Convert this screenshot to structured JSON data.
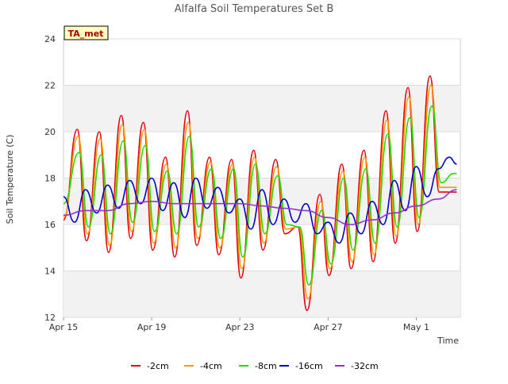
{
  "chart_data": {
    "type": "line",
    "title": "Alfalfa Soil Temperatures Set B",
    "xlabel": "Time",
    "ylabel": "Soil Temperature (C)",
    "badge": "TA_met",
    "ylim": [
      12,
      24
    ],
    "yticks": [
      12,
      14,
      16,
      18,
      20,
      22,
      24
    ],
    "xlim": [
      "2024-04-15",
      "2024-05-03"
    ],
    "xticks": [
      {
        "date": "2024-04-15",
        "label": "Apr 15"
      },
      {
        "date": "2024-04-19",
        "label": "Apr 19"
      },
      {
        "date": "2024-04-23",
        "label": "Apr 23"
      },
      {
        "date": "2024-04-27",
        "label": "Apr 27"
      },
      {
        "date": "2024-05-01",
        "label": "May 1"
      }
    ],
    "grid": "horizontal bands",
    "legend_position": "bottom",
    "series": [
      {
        "name": "-2cm",
        "color": "#e8000b",
        "x": [
          "2024-04-15T00:00",
          "2024-04-15T15:00",
          "2024-04-16T01:00",
          "2024-04-16T15:00",
          "2024-04-17T01:00",
          "2024-04-17T15:00",
          "2024-04-18T01:00",
          "2024-04-18T15:00",
          "2024-04-19T01:00",
          "2024-04-19T15:00",
          "2024-04-20T01:00",
          "2024-04-20T15:00",
          "2024-04-21T01:00",
          "2024-04-21T15:00",
          "2024-04-22T01:00",
          "2024-04-22T15:00",
          "2024-04-23T01:00",
          "2024-04-23T15:00",
          "2024-04-24T01:00",
          "2024-04-24T15:00",
          "2024-04-25T01:00",
          "2024-04-25T15:00",
          "2024-04-26T01:00",
          "2024-04-26T15:00",
          "2024-04-27T01:00",
          "2024-04-27T15:00",
          "2024-04-28T01:00",
          "2024-04-28T15:00",
          "2024-04-29T01:00",
          "2024-04-29T15:00",
          "2024-04-30T01:00",
          "2024-04-30T15:00",
          "2024-05-01T01:00",
          "2024-05-01T15:00",
          "2024-05-02T01:00",
          "2024-05-02T15:00",
          "2024-05-02T20:00"
        ],
        "y": [
          16.2,
          20.1,
          15.3,
          20.0,
          14.8,
          20.7,
          15.4,
          20.4,
          14.9,
          18.9,
          14.6,
          20.9,
          15.1,
          18.9,
          14.7,
          18.8,
          13.7,
          19.2,
          14.9,
          18.8,
          15.6,
          15.9,
          12.3,
          17.3,
          13.8,
          18.6,
          14.1,
          19.2,
          14.4,
          20.9,
          15.2,
          21.9,
          15.7,
          22.4,
          17.4,
          17.4,
          17.4
        ]
      },
      {
        "name": "-4cm",
        "color": "#ff9900",
        "x": [
          "2024-04-15T00:00",
          "2024-04-15T16:00",
          "2024-04-16T02:00",
          "2024-04-16T16:00",
          "2024-04-17T02:00",
          "2024-04-17T16:00",
          "2024-04-18T02:00",
          "2024-04-18T16:00",
          "2024-04-19T02:00",
          "2024-04-19T16:00",
          "2024-04-20T02:00",
          "2024-04-20T16:00",
          "2024-04-21T02:00",
          "2024-04-21T16:00",
          "2024-04-22T02:00",
          "2024-04-22T16:00",
          "2024-04-23T02:00",
          "2024-04-23T16:00",
          "2024-04-24T02:00",
          "2024-04-24T16:00",
          "2024-04-25T02:00",
          "2024-04-25T16:00",
          "2024-04-26T02:00",
          "2024-04-26T16:00",
          "2024-04-27T02:00",
          "2024-04-27T16:00",
          "2024-04-28T02:00",
          "2024-04-28T16:00",
          "2024-04-29T02:00",
          "2024-04-29T16:00",
          "2024-04-30T02:00",
          "2024-04-30T16:00",
          "2024-05-01T02:00",
          "2024-05-01T16:00",
          "2024-05-02T02:00",
          "2024-05-02T16:00",
          "2024-05-02T20:00"
        ],
        "y": [
          16.3,
          19.8,
          15.6,
          19.7,
          15.1,
          20.3,
          15.7,
          20.1,
          15.2,
          18.6,
          15.0,
          20.4,
          15.4,
          18.7,
          15.0,
          18.6,
          14.1,
          18.9,
          15.2,
          18.5,
          15.8,
          15.9,
          12.8,
          17.0,
          14.1,
          18.3,
          14.4,
          18.9,
          14.7,
          20.5,
          15.5,
          21.5,
          16.0,
          22.0,
          17.6,
          17.6,
          17.6
        ]
      },
      {
        "name": "-8cm",
        "color": "#22dd00",
        "x": [
          "2024-04-15T00:00",
          "2024-04-15T17:00",
          "2024-04-16T03:00",
          "2024-04-16T17:00",
          "2024-04-17T03:00",
          "2024-04-17T17:00",
          "2024-04-18T03:00",
          "2024-04-18T17:00",
          "2024-04-19T03:00",
          "2024-04-19T17:00",
          "2024-04-20T03:00",
          "2024-04-20T17:00",
          "2024-04-21T03:00",
          "2024-04-21T17:00",
          "2024-04-22T03:00",
          "2024-04-22T17:00",
          "2024-04-23T03:00",
          "2024-04-23T17:00",
          "2024-04-24T03:00",
          "2024-04-24T17:00",
          "2024-04-25T03:00",
          "2024-04-25T17:00",
          "2024-04-26T03:00",
          "2024-04-26T17:00",
          "2024-04-27T03:00",
          "2024-04-27T17:00",
          "2024-04-28T03:00",
          "2024-04-28T17:00",
          "2024-04-29T03:00",
          "2024-04-29T17:00",
          "2024-04-30T03:00",
          "2024-04-30T17:00",
          "2024-05-01T03:00",
          "2024-05-01T17:00",
          "2024-05-02T03:00",
          "2024-05-02T17:00",
          "2024-05-02T20:00"
        ],
        "y": [
          16.9,
          19.1,
          15.9,
          19.0,
          15.6,
          19.6,
          16.1,
          19.4,
          15.7,
          18.3,
          15.6,
          19.8,
          15.9,
          18.4,
          15.4,
          18.4,
          14.6,
          18.6,
          15.6,
          18.1,
          16.0,
          15.9,
          13.4,
          16.6,
          14.3,
          18.0,
          14.9,
          18.4,
          15.2,
          19.9,
          15.9,
          20.6,
          16.3,
          21.1,
          17.8,
          18.2,
          18.2
        ]
      },
      {
        "name": "-16cm",
        "color": "#0000cc",
        "x": [
          "2024-04-15T00:00",
          "2024-04-15T12:00",
          "2024-04-16T00:00",
          "2024-04-16T12:00",
          "2024-04-17T00:00",
          "2024-04-17T12:00",
          "2024-04-18T00:00",
          "2024-04-18T12:00",
          "2024-04-19T00:00",
          "2024-04-19T12:00",
          "2024-04-20T00:00",
          "2024-04-20T12:00",
          "2024-04-21T00:00",
          "2024-04-21T12:00",
          "2024-04-22T00:00",
          "2024-04-22T12:00",
          "2024-04-23T00:00",
          "2024-04-23T12:00",
          "2024-04-24T00:00",
          "2024-04-24T12:00",
          "2024-04-25T00:00",
          "2024-04-25T12:00",
          "2024-04-26T00:00",
          "2024-04-26T12:00",
          "2024-04-27T00:00",
          "2024-04-27T12:00",
          "2024-04-28T00:00",
          "2024-04-28T12:00",
          "2024-04-29T00:00",
          "2024-04-29T12:00",
          "2024-04-30T00:00",
          "2024-04-30T12:00",
          "2024-05-01T00:00",
          "2024-05-01T12:00",
          "2024-05-02T00:00",
          "2024-05-02T12:00",
          "2024-05-02T20:00"
        ],
        "y": [
          17.2,
          16.1,
          17.5,
          16.5,
          17.7,
          16.7,
          17.9,
          16.9,
          18.0,
          16.6,
          17.8,
          16.3,
          18.0,
          16.7,
          17.6,
          16.5,
          17.1,
          15.8,
          17.5,
          16.0,
          17.1,
          16.1,
          16.9,
          15.6,
          16.1,
          15.2,
          16.5,
          15.6,
          17.0,
          16.0,
          17.9,
          16.6,
          18.5,
          17.2,
          18.4,
          18.9,
          18.6
        ]
      },
      {
        "name": "-32cm",
        "color": "#9933cc",
        "x": [
          "2024-04-15T00:00",
          "2024-04-16T00:00",
          "2024-04-17T00:00",
          "2024-04-18T00:00",
          "2024-04-19T00:00",
          "2024-04-20T00:00",
          "2024-04-21T00:00",
          "2024-04-22T00:00",
          "2024-04-23T00:00",
          "2024-04-24T00:00",
          "2024-04-25T00:00",
          "2024-04-26T00:00",
          "2024-04-27T00:00",
          "2024-04-28T00:00",
          "2024-04-29T00:00",
          "2024-04-30T00:00",
          "2024-05-01T00:00",
          "2024-05-02T00:00",
          "2024-05-02T20:00"
        ],
        "y": [
          16.4,
          16.6,
          16.6,
          16.9,
          17.0,
          16.9,
          16.9,
          16.9,
          16.9,
          16.8,
          16.7,
          16.6,
          16.3,
          16.0,
          16.2,
          16.5,
          16.8,
          17.1,
          17.5
        ]
      }
    ]
  }
}
